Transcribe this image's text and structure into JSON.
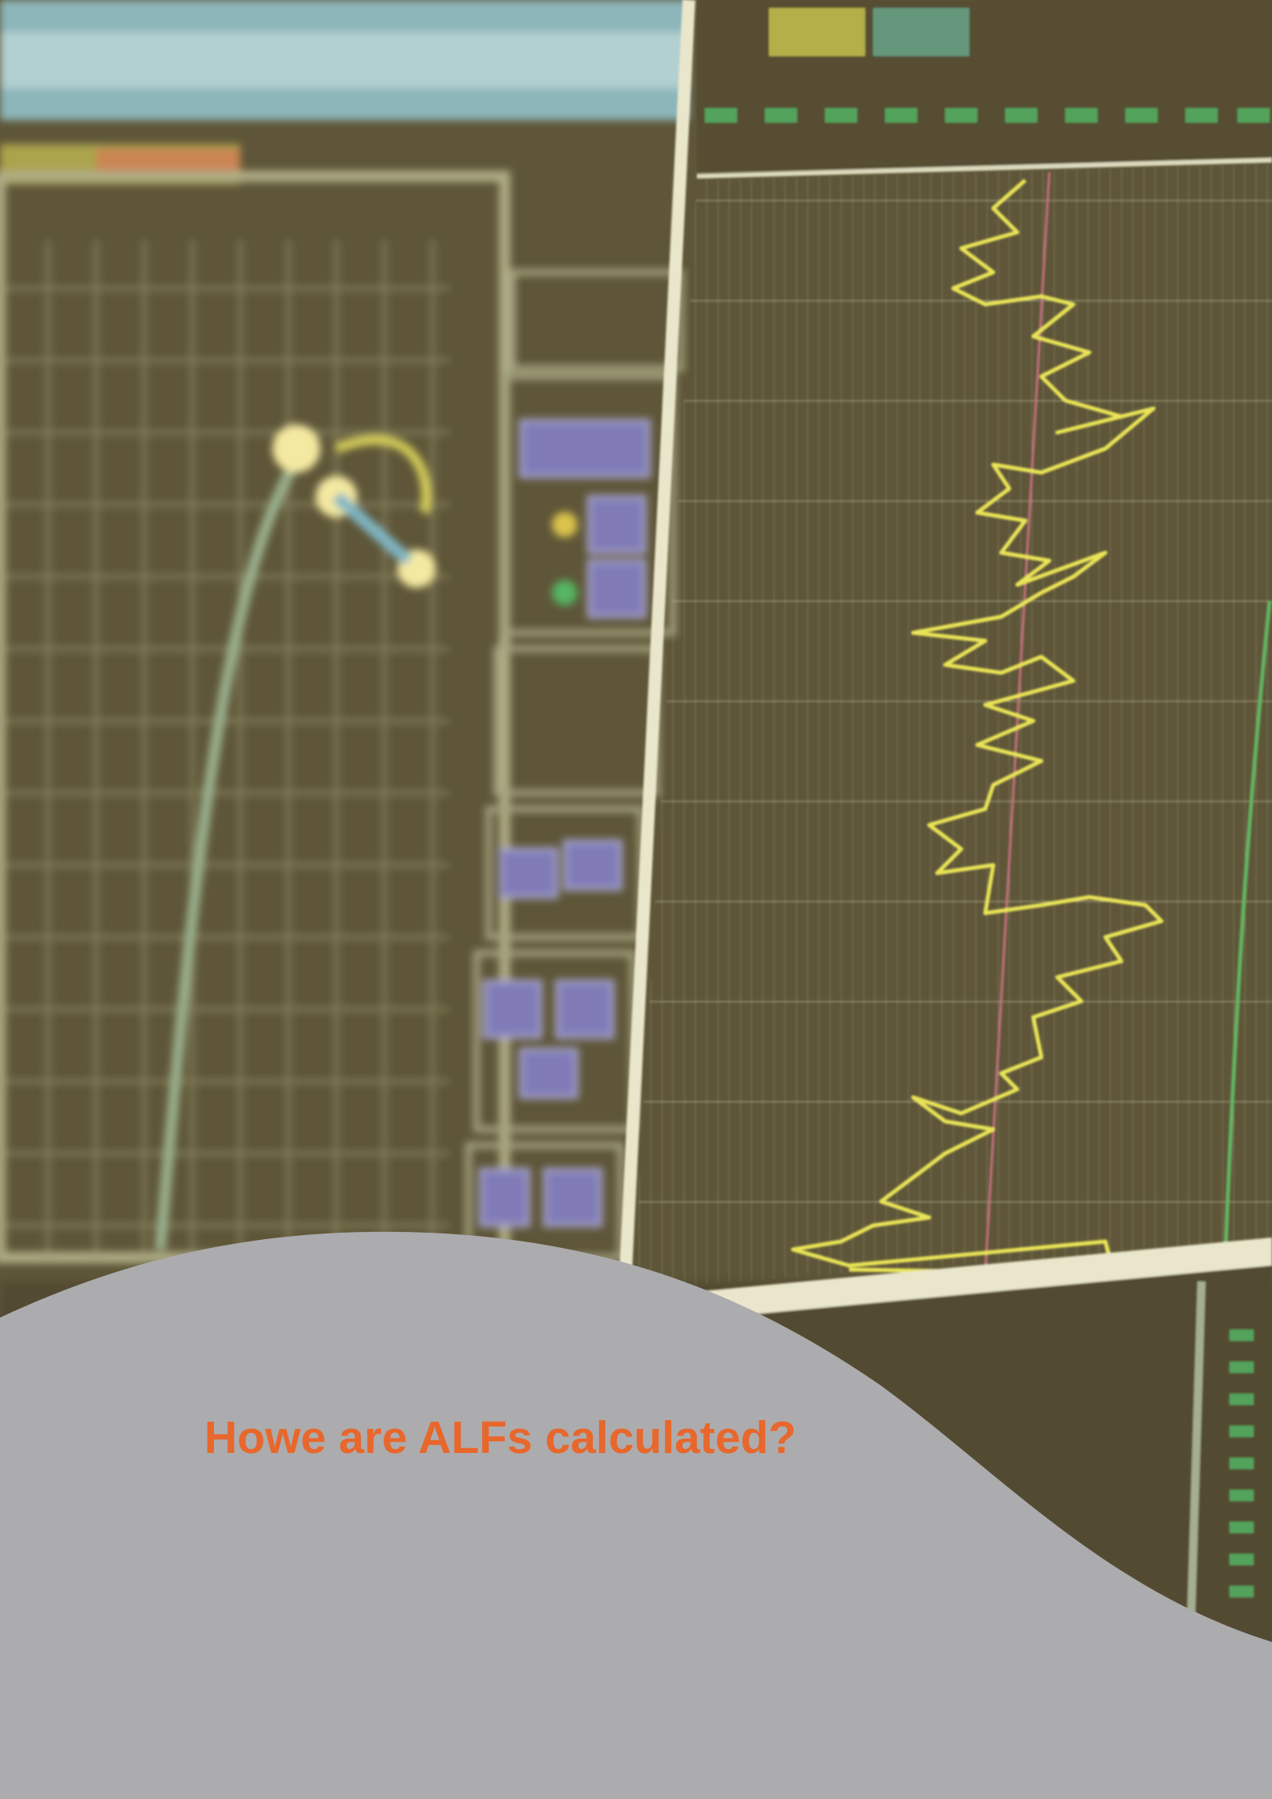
{
  "heading": "Howe are ALFs calculated?"
}
